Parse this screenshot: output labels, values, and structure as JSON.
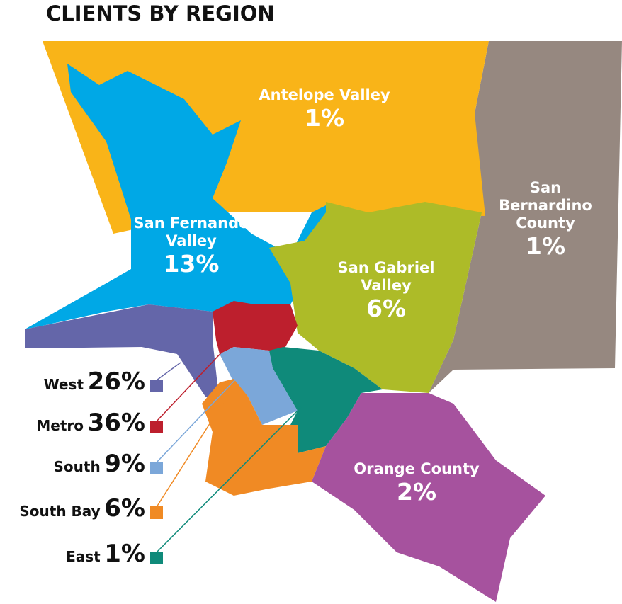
{
  "chart_data": {
    "type": "map",
    "title": "CLIENTS BY REGION",
    "categories": [
      "Antelope Valley",
      "San Fernando Valley",
      "San Bernardino County",
      "San Gabriel Valley",
      "West",
      "Metro",
      "South",
      "South Bay",
      "East",
      "Orange County"
    ],
    "values": [
      1,
      13,
      1,
      6,
      26,
      36,
      9,
      6,
      1,
      2
    ],
    "value_labels": [
      "1%",
      "13%",
      "1%",
      "6%",
      "26%",
      "36%",
      "9%",
      "6%",
      "1%",
      "2%"
    ],
    "colors": [
      "#f9b418",
      "#00a8e6",
      "#968880",
      "#adbb28",
      "#6466a9",
      "#bd1f2d",
      "#7ba7d9",
      "#f08a24",
      "#0f8a7a",
      "#a6529e"
    ]
  }
}
